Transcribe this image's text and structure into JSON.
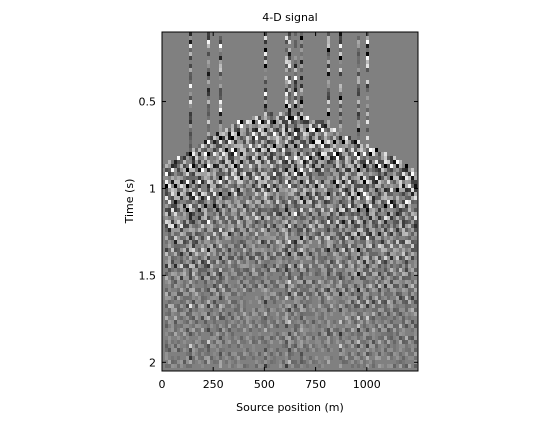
{
  "chart_data": {
    "type": "heatmap",
    "title": "4-D signal",
    "xlabel": "Source position (m)",
    "ylabel": "Time (s)",
    "xlim": [
      0,
      1250
    ],
    "ylim": [
      0.1,
      2.05
    ],
    "y_reversed": true,
    "colormap": "gray",
    "grid": false,
    "x_ticks": [
      0,
      250,
      500,
      750,
      1000
    ],
    "x_tick_labels": [
      "0",
      "250",
      "500",
      "750",
      "1000"
    ],
    "y_ticks": [
      0.5,
      1,
      1.5,
      2
    ],
    "y_tick_labels": [
      "0.5",
      "1",
      "1.5",
      "2"
    ],
    "onset_curve": {
      "x": [
        30,
        120,
        250,
        400,
        500,
        620,
        700,
        800,
        900,
        1000,
        1100,
        1250
      ],
      "time": [
        0.85,
        0.8,
        0.7,
        0.6,
        0.57,
        0.55,
        0.58,
        0.62,
        0.7,
        0.75,
        0.8,
        0.9
      ]
    },
    "strong_traces_x": [
      140,
      230,
      290,
      500,
      615,
      655,
      675,
      815,
      870,
      955,
      1000
    ]
  }
}
